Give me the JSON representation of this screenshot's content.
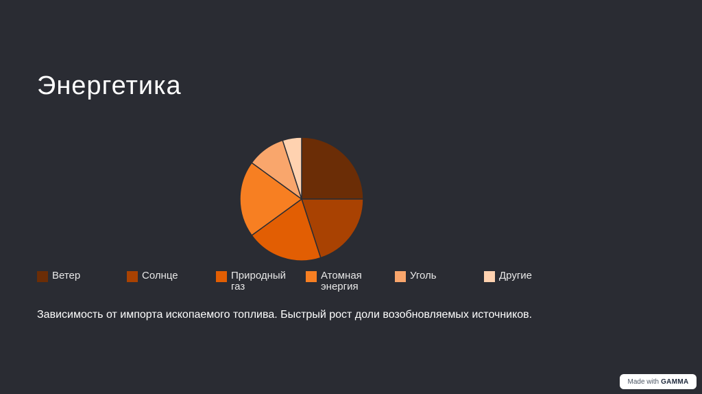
{
  "slide": {
    "title": "Энергетика",
    "description": "Зависимость от импорта ископаемого топлива. Быстрый рост доли возобновляемых источников."
  },
  "badge": {
    "prefix": "Made with",
    "brand": "GAMMA"
  },
  "chart_data": {
    "type": "pie",
    "categories": [
      "Ветер",
      "Солнце",
      "Природный газ",
      "Атомная энергия",
      "Уголь",
      "Другие"
    ],
    "values": [
      25,
      20,
      20,
      20,
      10,
      5
    ],
    "colors": [
      "#6b2d06",
      "#a94202",
      "#e25e03",
      "#f77f22",
      "#f9a66c",
      "#ffd2b0"
    ],
    "legend": "bottom-left"
  }
}
